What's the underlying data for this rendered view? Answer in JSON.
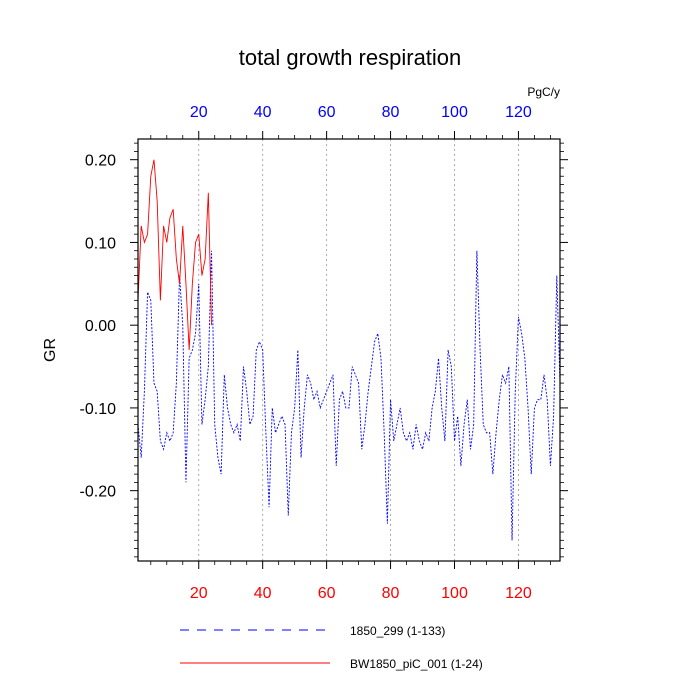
{
  "chart_data": {
    "type": "line",
    "title": "total growth respiration",
    "ylabel": "GR",
    "units": "PgC/y",
    "xlim": [
      1,
      133
    ],
    "ylim": [
      -0.285,
      0.225
    ],
    "y_ticks": [
      0.2,
      0.1,
      0.0,
      -0.1,
      -0.2
    ],
    "y_tick_labels": [
      "0.20",
      "0.10",
      "0.00",
      "-0.10",
      "-0.20"
    ],
    "bottom_x_ticks": [
      20,
      40,
      60,
      80,
      100,
      120
    ],
    "top_x_ticks": [
      20,
      40,
      60,
      80,
      100,
      120
    ],
    "bottom_tick_color": "#ff0000",
    "top_tick_color": "#0000ff",
    "grid_x": [
      20,
      40,
      60,
      80,
      100,
      120
    ],
    "legend": [
      {
        "label": "1850_299 (1-133)",
        "color": "#0000ff",
        "dash": "dash"
      },
      {
        "label": "BW1850_piC_001 (1-24)",
        "color": "#ff0000",
        "dash": "solid"
      }
    ],
    "series": [
      {
        "name": "1850_299 (1-133)",
        "color": "#0000ff",
        "x_start": 1,
        "values": [
          -0.12,
          -0.16,
          -0.08,
          0.04,
          0.03,
          -0.07,
          -0.08,
          -0.14,
          -0.15,
          -0.13,
          -0.14,
          -0.13,
          -0.07,
          0.06,
          0.0,
          -0.19,
          -0.04,
          -0.03,
          -0.01,
          0.05,
          -0.12,
          -0.09,
          -0.05,
          0.09,
          -0.12,
          -0.16,
          -0.18,
          -0.06,
          -0.1,
          -0.12,
          -0.13,
          -0.12,
          -0.14,
          -0.05,
          -0.08,
          -0.12,
          -0.11,
          -0.03,
          -0.02,
          -0.03,
          -0.13,
          -0.22,
          -0.1,
          -0.13,
          -0.12,
          -0.11,
          -0.12,
          -0.23,
          -0.13,
          -0.1,
          -0.03,
          -0.16,
          -0.1,
          -0.06,
          -0.07,
          -0.09,
          -0.08,
          -0.1,
          -0.09,
          -0.08,
          -0.07,
          -0.06,
          -0.17,
          -0.09,
          -0.08,
          -0.1,
          -0.1,
          -0.05,
          -0.06,
          -0.07,
          -0.15,
          -0.12,
          -0.08,
          -0.05,
          -0.02,
          -0.01,
          -0.04,
          -0.13,
          -0.24,
          -0.09,
          -0.14,
          -0.12,
          -0.1,
          -0.13,
          -0.14,
          -0.13,
          -0.15,
          -0.12,
          -0.14,
          -0.15,
          -0.13,
          -0.14,
          -0.1,
          -0.08,
          -0.04,
          -0.1,
          -0.14,
          -0.03,
          -0.05,
          -0.14,
          -0.11,
          -0.17,
          -0.12,
          -0.09,
          -0.15,
          -0.12,
          0.09,
          -0.03,
          -0.12,
          -0.13,
          -0.13,
          -0.18,
          -0.13,
          -0.09,
          -0.06,
          -0.07,
          -0.05,
          -0.26,
          -0.08,
          0.01,
          -0.01,
          -0.04,
          -0.1,
          -0.18,
          -0.1,
          -0.09,
          -0.09,
          -0.06,
          -0.09,
          -0.17,
          -0.11,
          0.06,
          -0.07
        ]
      },
      {
        "name": "BW1850_piC_001 (1-24)",
        "color": "#ff0000",
        "x_start": 1,
        "values": [
          0.03,
          0.12,
          0.1,
          0.11,
          0.18,
          0.2,
          0.15,
          0.03,
          0.12,
          0.1,
          0.13,
          0.14,
          0.08,
          0.05,
          0.12,
          0.05,
          -0.03,
          0.05,
          0.1,
          0.11,
          0.06,
          0.08,
          0.16,
          0.0
        ]
      }
    ]
  }
}
